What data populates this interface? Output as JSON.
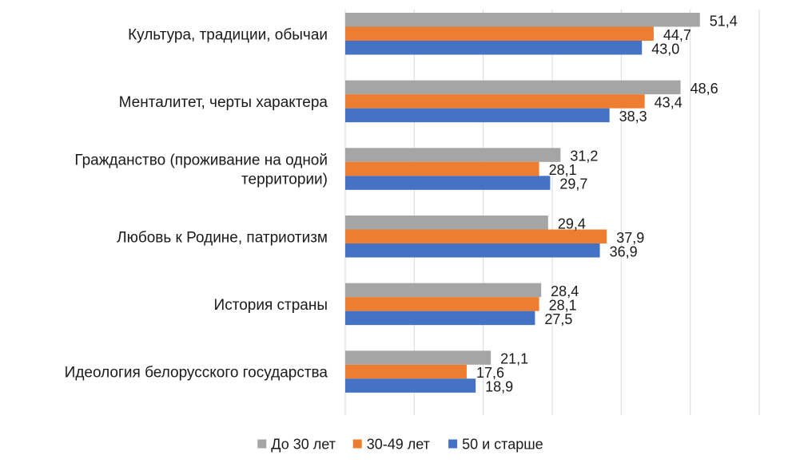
{
  "chart_data": {
    "type": "bar",
    "orientation": "horizontal",
    "categories": [
      [
        "Культура, традиции, обычаи"
      ],
      [
        "Менталитет, черты характера"
      ],
      [
        "Гражданство (проживание на одной",
        "территории)"
      ],
      [
        "Любовь к Родине, патриотизм"
      ],
      [
        "История страны"
      ],
      [
        "Идеология белорусского государства"
      ]
    ],
    "series": [
      {
        "name": "До 30 лет",
        "color": "#a5a5a5",
        "values": [
          51.4,
          48.6,
          31.2,
          29.4,
          28.4,
          21.1
        ],
        "labels": [
          "51,4",
          "48,6",
          "31,2",
          "29,4",
          "28,4",
          "21,1"
        ]
      },
      {
        "name": "30-49 лет",
        "color": "#ed7d31",
        "values": [
          44.7,
          43.4,
          28.1,
          37.9,
          28.1,
          17.6
        ],
        "labels": [
          "44,7",
          "43,4",
          "28,1",
          "37,9",
          "28,1",
          "17,6"
        ]
      },
      {
        "name": "50 и старше",
        "color": "#4472c4",
        "values": [
          43.0,
          38.3,
          29.7,
          36.9,
          27.5,
          18.9
        ],
        "labels": [
          "43,0",
          "38,3",
          "29,7",
          "36,9",
          "27,5",
          "18,9"
        ]
      }
    ],
    "xlim": [
      0,
      60
    ],
    "gridlines": [
      0,
      10,
      20,
      30,
      40,
      50,
      60
    ],
    "grid": true,
    "legend": "bottom",
    "title": "",
    "xlabel": "",
    "ylabel": ""
  }
}
